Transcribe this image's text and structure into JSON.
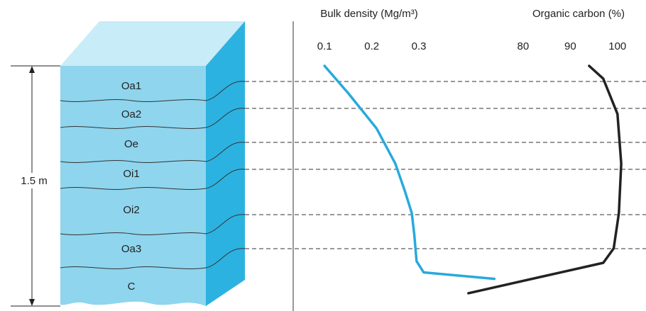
{
  "profile": {
    "depth_label": "1.5 m",
    "horizons": [
      "Oa1",
      "Oa2",
      "Oe",
      "Oi1",
      "Oi2",
      "Oa3",
      "C"
    ]
  },
  "chart_data": [
    {
      "type": "line",
      "title": "Bulk density (Mg/m³)",
      "xlim": [
        0.05,
        0.5
      ],
      "xticks": [
        0.1,
        0.2,
        0.3
      ],
      "ylim": [
        0,
        1.5
      ],
      "series": [
        {
          "color": "#29a9dc",
          "x": [
            0.1,
            0.15,
            0.21,
            0.25,
            0.27,
            0.285,
            0.29,
            0.295,
            0.31,
            0.46
          ],
          "values": [
            0,
            0.17,
            0.39,
            0.61,
            0.78,
            0.92,
            1.05,
            1.22,
            1.29,
            1.33
          ]
        }
      ]
    },
    {
      "type": "line",
      "title": "Organic carbon (%)",
      "xlim": [
        60,
        105
      ],
      "xticks": [
        80,
        90,
        100
      ],
      "ylim": [
        0,
        1.5
      ],
      "series": [
        {
          "color": "#222222",
          "x": [
            94,
            97,
            100,
            100.8,
            100.3,
            99.2,
            97,
            68.4
          ],
          "values": [
            0,
            0.08,
            0.3,
            0.61,
            0.92,
            1.14,
            1.23,
            1.42
          ]
        }
      ]
    }
  ]
}
